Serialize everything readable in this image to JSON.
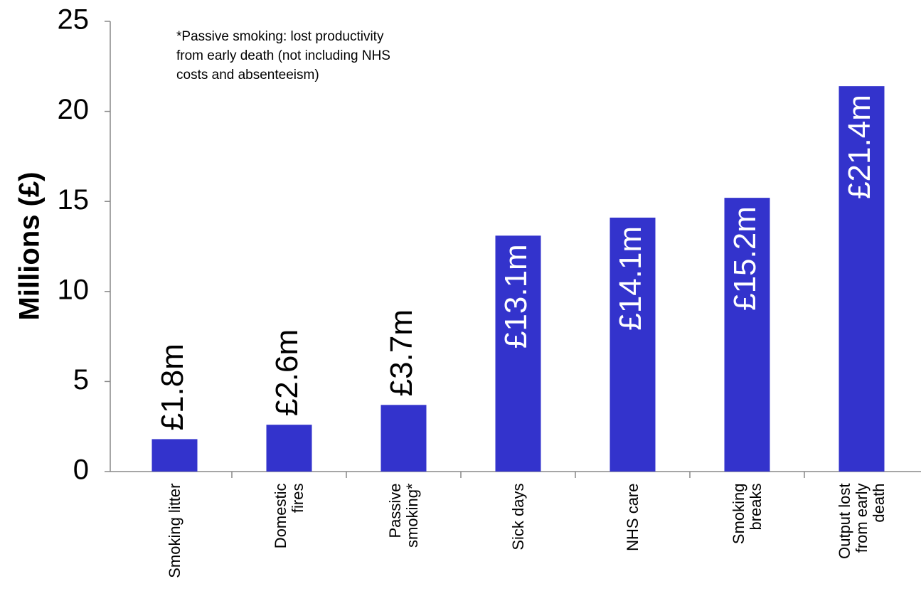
{
  "chart_data": {
    "type": "bar",
    "y_label": "Millions (£)",
    "annotation": "*Passive smoking: lost productivity from early death (not including NHS costs and absenteeism)",
    "categories": [
      "Smoking litter",
      "Domestic fires",
      "Passive smoking*",
      "Sick days",
      "NHS care",
      "Smoking breaks",
      "Output lost from early death"
    ],
    "values": [
      1.8,
      2.6,
      3.7,
      13.1,
      14.1,
      15.2,
      21.4
    ],
    "value_labels": [
      "£1.8m",
      "£2.6m",
      "£3.7m",
      "£13.1m",
      "£14.1m",
      "£15.2m",
      "£21.4m"
    ],
    "color": "#3333cc",
    "ylim": [
      0,
      25
    ],
    "yticks": [
      0,
      5,
      10,
      15,
      20,
      25
    ]
  }
}
